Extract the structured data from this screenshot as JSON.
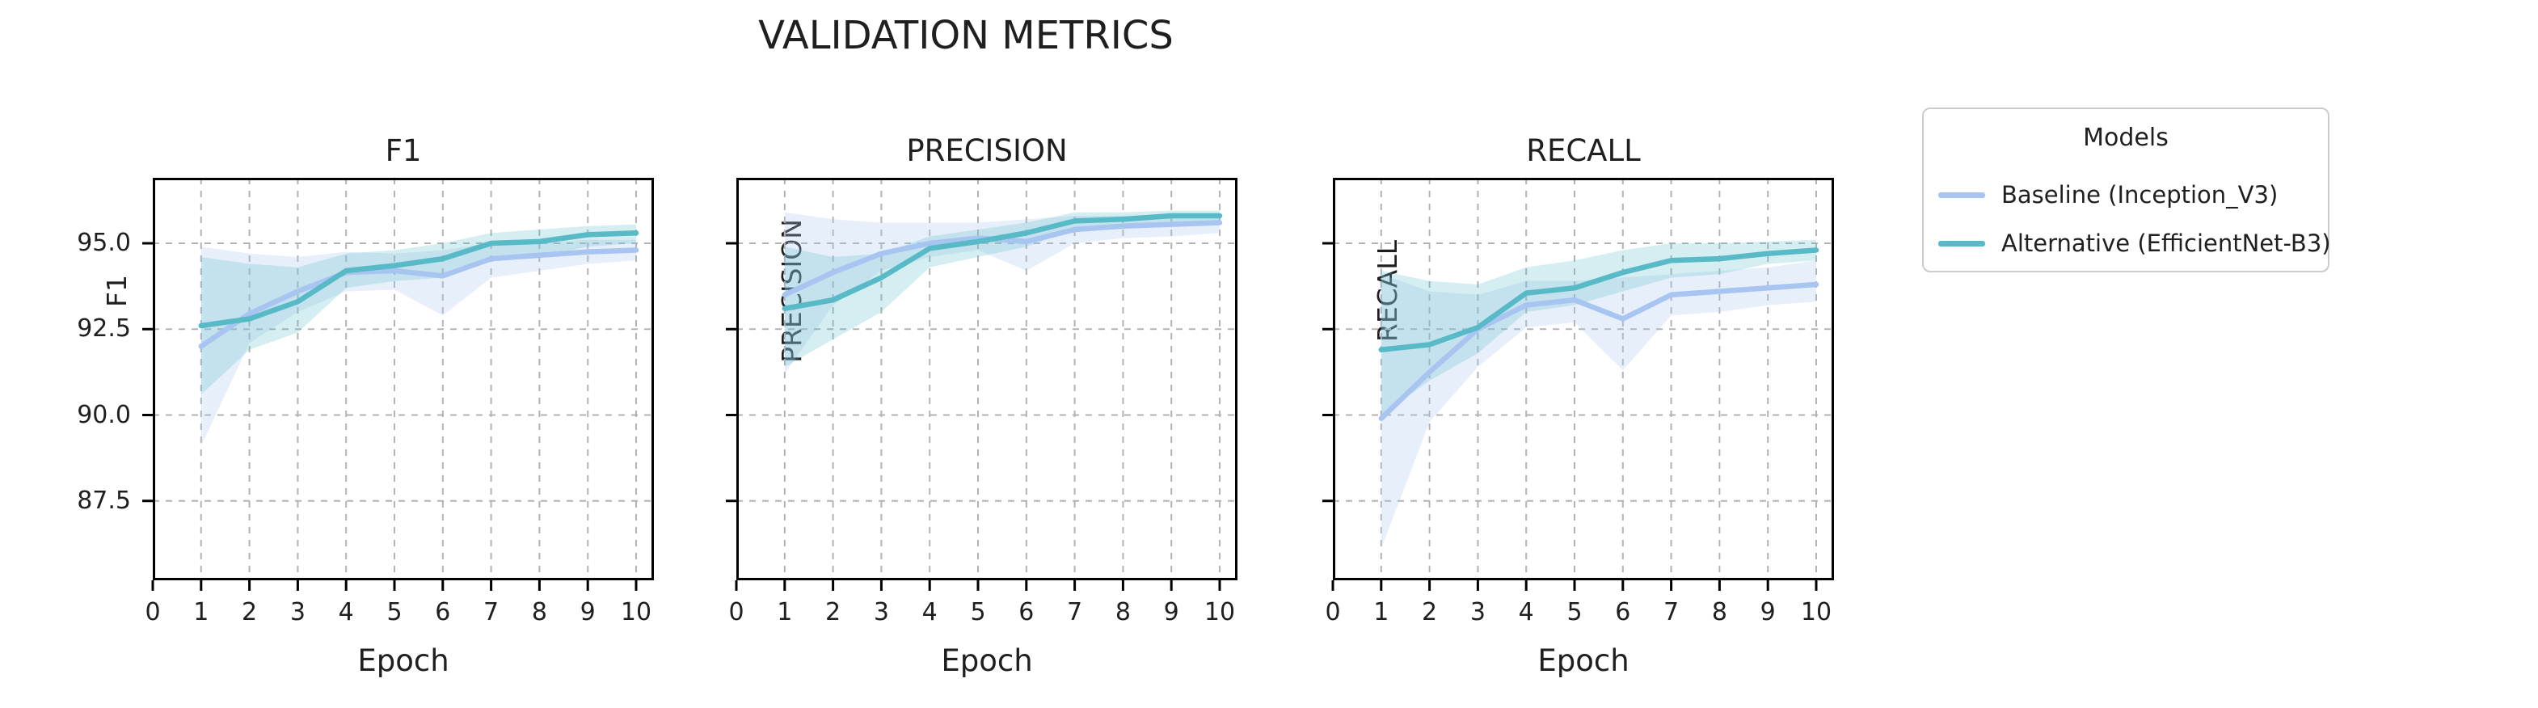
{
  "suptitle": "VALIDATION METRICS",
  "colors": {
    "baseline": "#a8c4f0",
    "alternative": "#58bac7",
    "baseline_band": "#a8c4f0",
    "alternative_band": "#58bac7",
    "gridline": "#b3b3b3",
    "spine": "#000000",
    "text": "#1f1f1f",
    "legend_border": "#cccccc"
  },
  "legend": {
    "title": "Models",
    "entries": [
      {
        "label": "Baseline (Inception_V3)",
        "color_key": "baseline"
      },
      {
        "label": "Alternative (EfficientNet-B3)",
        "color_key": "alternative"
      }
    ]
  },
  "chart_data": [
    {
      "type": "line",
      "title": "F1",
      "xlabel": "Epoch",
      "ylabel": "F1",
      "x": [
        1,
        2,
        3,
        4,
        5,
        6,
        7,
        8,
        9,
        10
      ],
      "xticks": [
        0,
        1,
        2,
        3,
        4,
        5,
        6,
        7,
        8,
        9,
        10
      ],
      "yticks": [
        95.0,
        92.5,
        90.0,
        87.5
      ],
      "ytick_labels": [
        "95.0",
        "92.5",
        "90.0",
        "87.5"
      ],
      "ytick_labels_visible": true,
      "xlim": [
        0,
        10.37
      ],
      "ylim": [
        85.2,
        96.9
      ],
      "grid": "dashed",
      "series": [
        {
          "name": "Baseline (Inception_V3)",
          "color_key": "baseline",
          "values": [
            92.0,
            92.95,
            93.6,
            94.15,
            94.2,
            94.05,
            94.55,
            94.65,
            94.75,
            94.8
          ],
          "band_low": [
            89.1,
            92.1,
            93.0,
            93.6,
            93.65,
            92.9,
            94.0,
            94.2,
            94.4,
            94.5
          ],
          "band_high": [
            94.9,
            94.7,
            94.6,
            94.75,
            94.7,
            94.8,
            95.0,
            95.0,
            95.1,
            95.1
          ]
        },
        {
          "name": "Alternative (EfficientNet-B3)",
          "color_key": "alternative",
          "values": [
            92.6,
            92.8,
            93.3,
            94.2,
            94.35,
            94.55,
            95.0,
            95.05,
            95.25,
            95.3
          ],
          "band_low": [
            90.6,
            91.9,
            92.4,
            93.7,
            93.9,
            94.0,
            94.5,
            94.6,
            94.9,
            95.0
          ],
          "band_high": [
            94.6,
            94.4,
            94.3,
            94.7,
            94.8,
            95.0,
            95.3,
            95.4,
            95.5,
            95.55
          ]
        }
      ]
    },
    {
      "type": "line",
      "title": "PRECISION",
      "xlabel": "Epoch",
      "ylabel": "PRECISION",
      "x": [
        1,
        2,
        3,
        4,
        5,
        6,
        7,
        8,
        9,
        10
      ],
      "xticks": [
        0,
        1,
        2,
        3,
        4,
        5,
        6,
        7,
        8,
        9,
        10
      ],
      "yticks": [
        95.0,
        92.5,
        90.0,
        87.5
      ],
      "ytick_labels": [
        "95.0",
        "92.5",
        "90.0",
        "87.5"
      ],
      "ytick_labels_visible": false,
      "xlim": [
        0,
        10.37
      ],
      "ylim": [
        85.2,
        96.9
      ],
      "grid": "dashed",
      "series": [
        {
          "name": "Baseline (Inception_V3)",
          "color_key": "baseline",
          "values": [
            93.5,
            94.15,
            94.7,
            95.0,
            95.15,
            95.05,
            95.4,
            95.5,
            95.55,
            95.6
          ],
          "band_low": [
            91.2,
            93.2,
            94.2,
            94.6,
            94.8,
            94.2,
            95.0,
            95.15,
            95.2,
            95.3
          ],
          "band_high": [
            95.9,
            95.7,
            95.6,
            95.6,
            95.6,
            95.7,
            95.8,
            95.8,
            95.85,
            95.85
          ]
        },
        {
          "name": "Alternative (EfficientNet-B3)",
          "color_key": "alternative",
          "values": [
            93.1,
            93.35,
            94.0,
            94.85,
            95.05,
            95.3,
            95.65,
            95.7,
            95.8,
            95.8
          ],
          "band_low": [
            91.4,
            92.2,
            93.0,
            94.3,
            94.6,
            94.9,
            95.4,
            95.5,
            95.6,
            95.65
          ],
          "band_high": [
            94.9,
            94.6,
            94.7,
            95.2,
            95.4,
            95.6,
            95.9,
            95.9,
            95.95,
            95.95
          ]
        }
      ]
    },
    {
      "type": "line",
      "title": "RECALL",
      "xlabel": "Epoch",
      "ylabel": "RECALL",
      "x": [
        1,
        2,
        3,
        4,
        5,
        6,
        7,
        8,
        9,
        10
      ],
      "xticks": [
        0,
        1,
        2,
        3,
        4,
        5,
        6,
        7,
        8,
        9,
        10
      ],
      "yticks": [
        95.0,
        92.5,
        90.0,
        87.5
      ],
      "ytick_labels": [
        "95.0",
        "92.5",
        "90.0",
        "87.5"
      ],
      "ytick_labels_visible": false,
      "xlim": [
        0,
        10.37
      ],
      "ylim": [
        85.2,
        96.9
      ],
      "grid": "dashed",
      "series": [
        {
          "name": "Baseline (Inception_V3)",
          "color_key": "baseline",
          "values": [
            89.9,
            91.25,
            92.5,
            93.2,
            93.35,
            92.8,
            93.5,
            93.6,
            93.7,
            93.8
          ],
          "band_low": [
            86.1,
            89.8,
            91.4,
            92.55,
            92.7,
            91.3,
            92.9,
            93.0,
            93.2,
            93.3
          ],
          "band_high": [
            94.1,
            93.6,
            93.5,
            93.9,
            93.9,
            94.0,
            94.1,
            94.2,
            94.3,
            94.5
          ]
        },
        {
          "name": "Alternative (EfficientNet-B3)",
          "color_key": "alternative",
          "values": [
            91.9,
            92.05,
            92.55,
            93.55,
            93.7,
            94.15,
            94.5,
            94.55,
            94.7,
            94.8
          ],
          "band_low": [
            90.0,
            91.0,
            91.8,
            93.0,
            93.2,
            93.6,
            94.0,
            94.1,
            94.4,
            94.5
          ],
          "band_high": [
            94.2,
            93.9,
            93.8,
            94.3,
            94.5,
            94.8,
            95.0,
            95.0,
            95.05,
            95.1
          ]
        }
      ]
    }
  ]
}
